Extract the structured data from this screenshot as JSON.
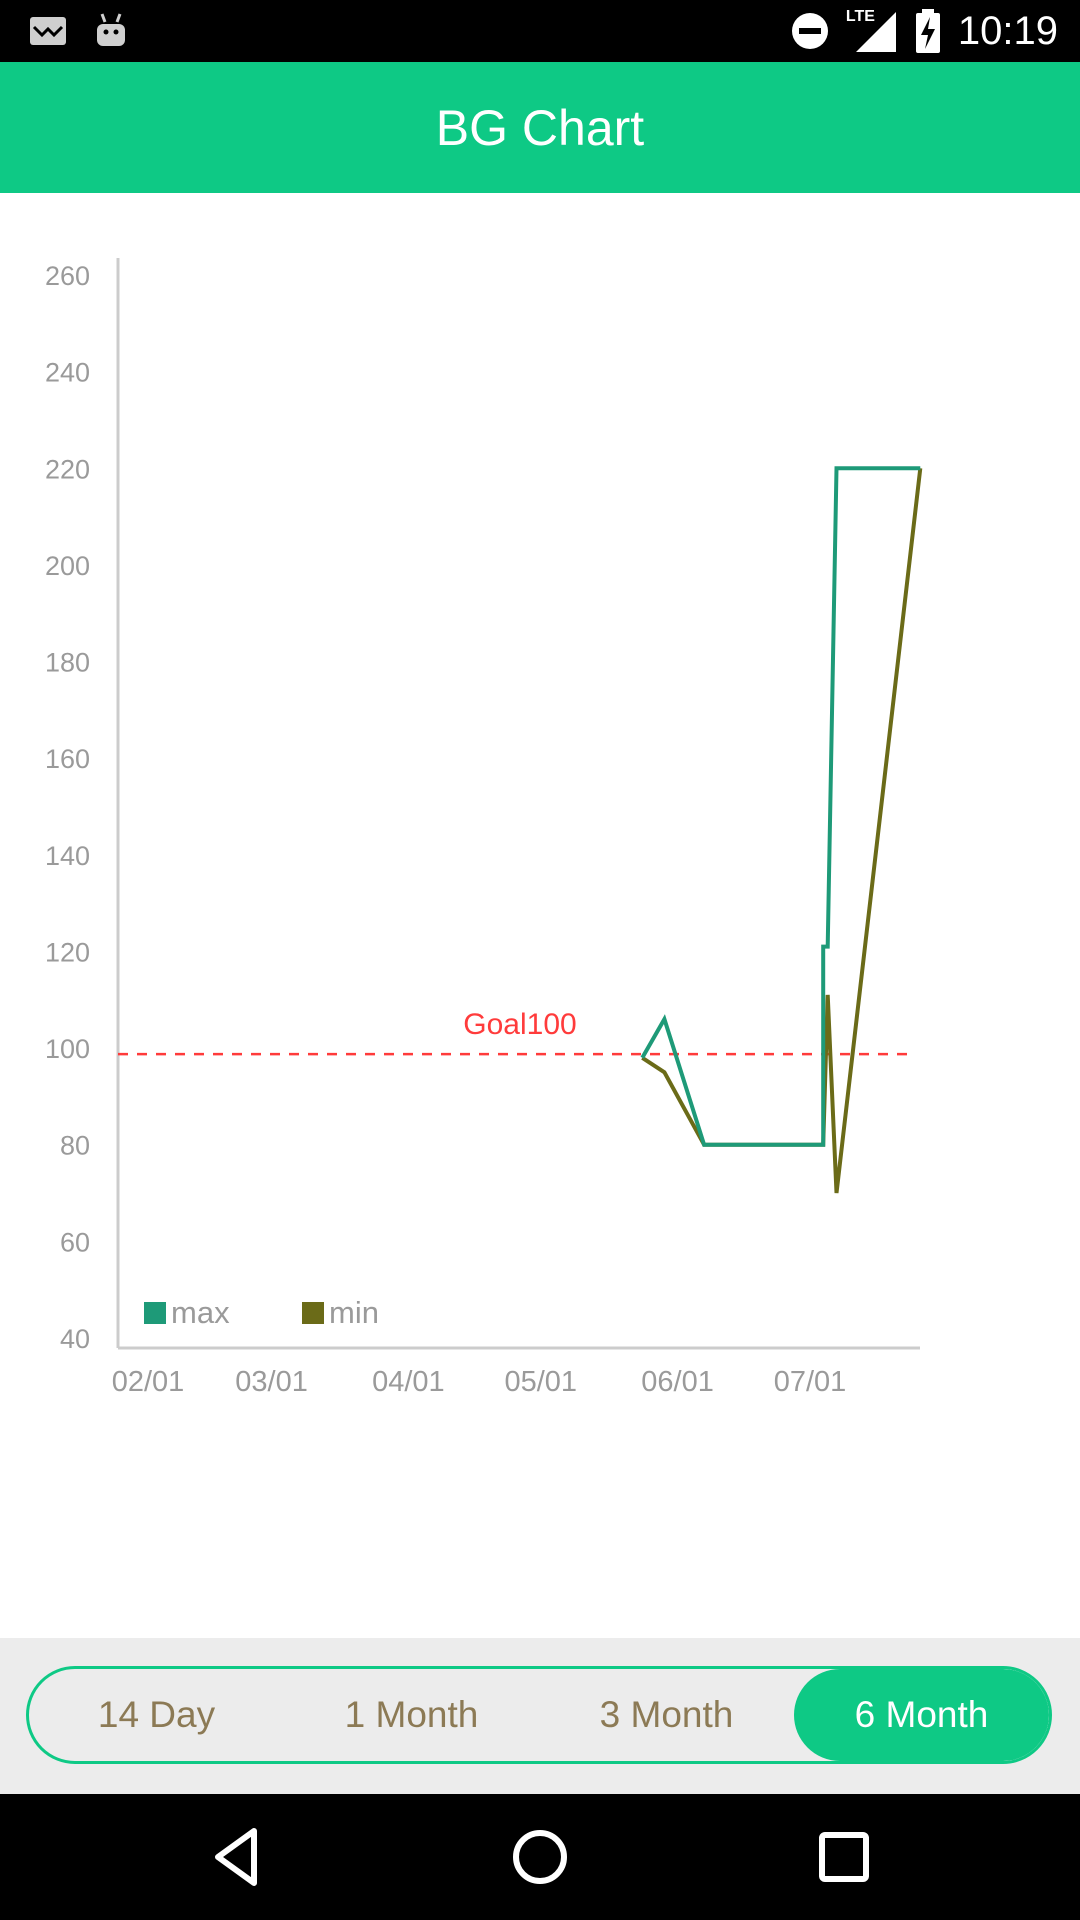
{
  "status_bar": {
    "time": "10:19",
    "network": "LTE",
    "icons": [
      "notification-icon",
      "android-icon",
      "do-not-disturb-icon",
      "signal-icon",
      "battery-charging-icon"
    ]
  },
  "app_bar": {
    "title": "BG Chart"
  },
  "chart_data": {
    "type": "line",
    "x_axis": {
      "tick_labels": [
        "02/01",
        "03/01",
        "04/01",
        "05/01",
        "06/01",
        "07/01"
      ]
    },
    "y_axis": {
      "ylim": [
        40,
        260
      ],
      "tick_labels": [
        "40",
        "60",
        "80",
        "100",
        "120",
        "140",
        "160",
        "180",
        "200",
        "220",
        "240",
        "260"
      ]
    },
    "goal_line": {
      "value": 100,
      "label": "Goal100",
      "color": "#ff3b3b"
    },
    "legend": {
      "placement": "bottom-left"
    },
    "grid": false,
    "series": [
      {
        "name": "max",
        "color": "#1e9a78",
        "points": [
          {
            "x": "2015-05-24",
            "y": 98
          },
          {
            "x": "2015-05-29",
            "y": 106
          },
          {
            "x": "2015-06-07",
            "y": 80
          },
          {
            "x": "2015-07-04",
            "y": 80
          },
          {
            "x": "2015-07-04",
            "y": 121
          },
          {
            "x": "2015-07-05",
            "y": 121
          },
          {
            "x": "2015-07-07",
            "y": 220
          },
          {
            "x": "2015-07-26",
            "y": 220
          }
        ]
      },
      {
        "name": "min",
        "color": "#6b6b18",
        "points": [
          {
            "x": "2015-05-24",
            "y": 98
          },
          {
            "x": "2015-05-29",
            "y": 95
          },
          {
            "x": "2015-06-07",
            "y": 80
          },
          {
            "x": "2015-07-04",
            "y": 80
          },
          {
            "x": "2015-07-05",
            "y": 111
          },
          {
            "x": "2015-07-07",
            "y": 70
          },
          {
            "x": "2015-07-26",
            "y": 220
          }
        ]
      }
    ]
  },
  "range_selector": {
    "options": [
      {
        "label": "14 Day",
        "active": false
      },
      {
        "label": "1 Month",
        "active": false
      },
      {
        "label": "3 Month",
        "active": false
      },
      {
        "label": "6 Month",
        "active": true
      }
    ]
  },
  "colors": {
    "accent": "#0ec985",
    "inactive_text": "#8c7a55",
    "axis": "#cccccc",
    "tick_text": "#9a9a9a"
  }
}
